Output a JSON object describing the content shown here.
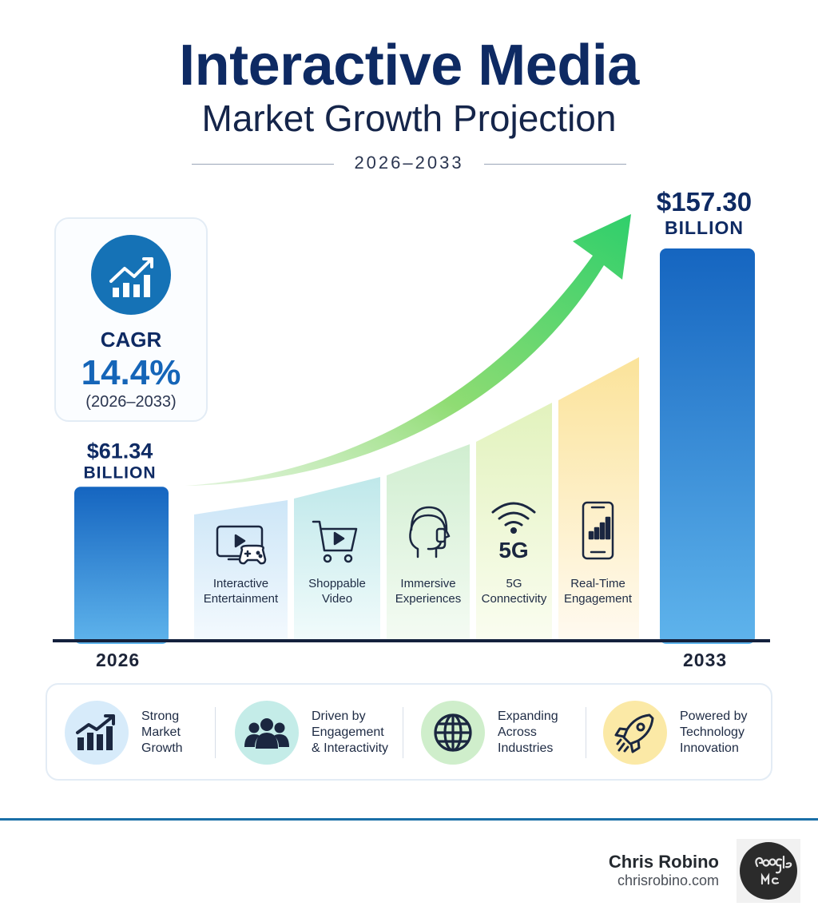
{
  "header": {
    "title": "Interactive Media",
    "subtitle": "Market Growth Projection",
    "period": "2026–2033"
  },
  "cagr": {
    "label": "CAGR",
    "value": "14.4%",
    "period": "(2026–2033)",
    "icon": "growth-chart-icon"
  },
  "chart_data": {
    "type": "bar",
    "categories": [
      "2026",
      "2033"
    ],
    "values": [
      61.34,
      157.3
    ],
    "value_labels": [
      "$61.34",
      "$157.30"
    ],
    "unit_label": "BILLION",
    "ylim": [
      0,
      160
    ],
    "grid": false,
    "trend_arrow": "up",
    "bar_color": "#1565c0"
  },
  "drivers": [
    {
      "label_line1": "Interactive",
      "label_line2": "Entertainment",
      "icon": "tv-gamepad-icon",
      "color": "#cde6f7"
    },
    {
      "label_line1": "Shoppable",
      "label_line2": "Video",
      "icon": "shopping-cart-icon",
      "color": "#c8ecec"
    },
    {
      "label_line1": "Immersive",
      "label_line2": "Experiences",
      "icon": "headset-icon",
      "color": "#d6efd4"
    },
    {
      "label_line1": "5G",
      "label_line2": "Connectivity",
      "icon": "5g-signal-icon",
      "color": "#e7f3c6"
    },
    {
      "label_line1": "Real-Time",
      "label_line2": "Engagement",
      "icon": "smartphone-chart-icon",
      "color": "#fbe8a6"
    }
  ],
  "drivers_5g_glyph": "5G",
  "features": [
    {
      "lines": [
        "Strong",
        "Market",
        "Growth"
      ],
      "icon": "bar-chart-arrow-icon",
      "color": "#d7ebfa"
    },
    {
      "lines": [
        "Driven by",
        "Engagement",
        "& Interactivity"
      ],
      "icon": "people-group-icon",
      "color": "#c4ece8"
    },
    {
      "lines": [
        "Expanding",
        "Across",
        "Industries"
      ],
      "icon": "globe-icon",
      "color": "#cfeecb"
    },
    {
      "lines": [
        "Powered by",
        "Technology",
        "Innovation"
      ],
      "icon": "rocket-icon",
      "color": "#fbe9a6"
    }
  ],
  "footer": {
    "name": "Chris Robino",
    "site": "chrisrobino.com",
    "badge_text": "Google Me"
  }
}
